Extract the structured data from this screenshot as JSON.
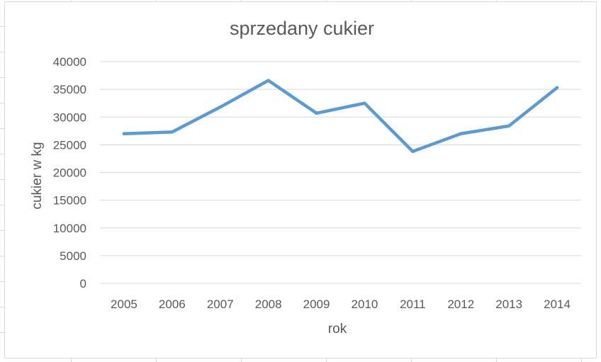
{
  "chart_data": {
    "type": "line",
    "title": "sprzedany cukier",
    "xlabel": "rok",
    "ylabel": "cukier w kg",
    "categories": [
      "2005",
      "2006",
      "2007",
      "2008",
      "2009",
      "2010",
      "2011",
      "2012",
      "2013",
      "2014"
    ],
    "series": [
      {
        "values": [
          27000,
          27300,
          31800,
          36600,
          30700,
          32500,
          23800,
          27000,
          28400,
          35300
        ]
      }
    ],
    "ylim": [
      0,
      40000
    ],
    "yticks": [
      "0",
      "5000",
      "10000",
      "15000",
      "20000",
      "25000",
      "30000",
      "35000",
      "40000"
    ],
    "grid": true,
    "legend": "none",
    "line_color": "#5b9bd5",
    "gridline_color": "#d9d9d9",
    "text_color": "#595959"
  }
}
